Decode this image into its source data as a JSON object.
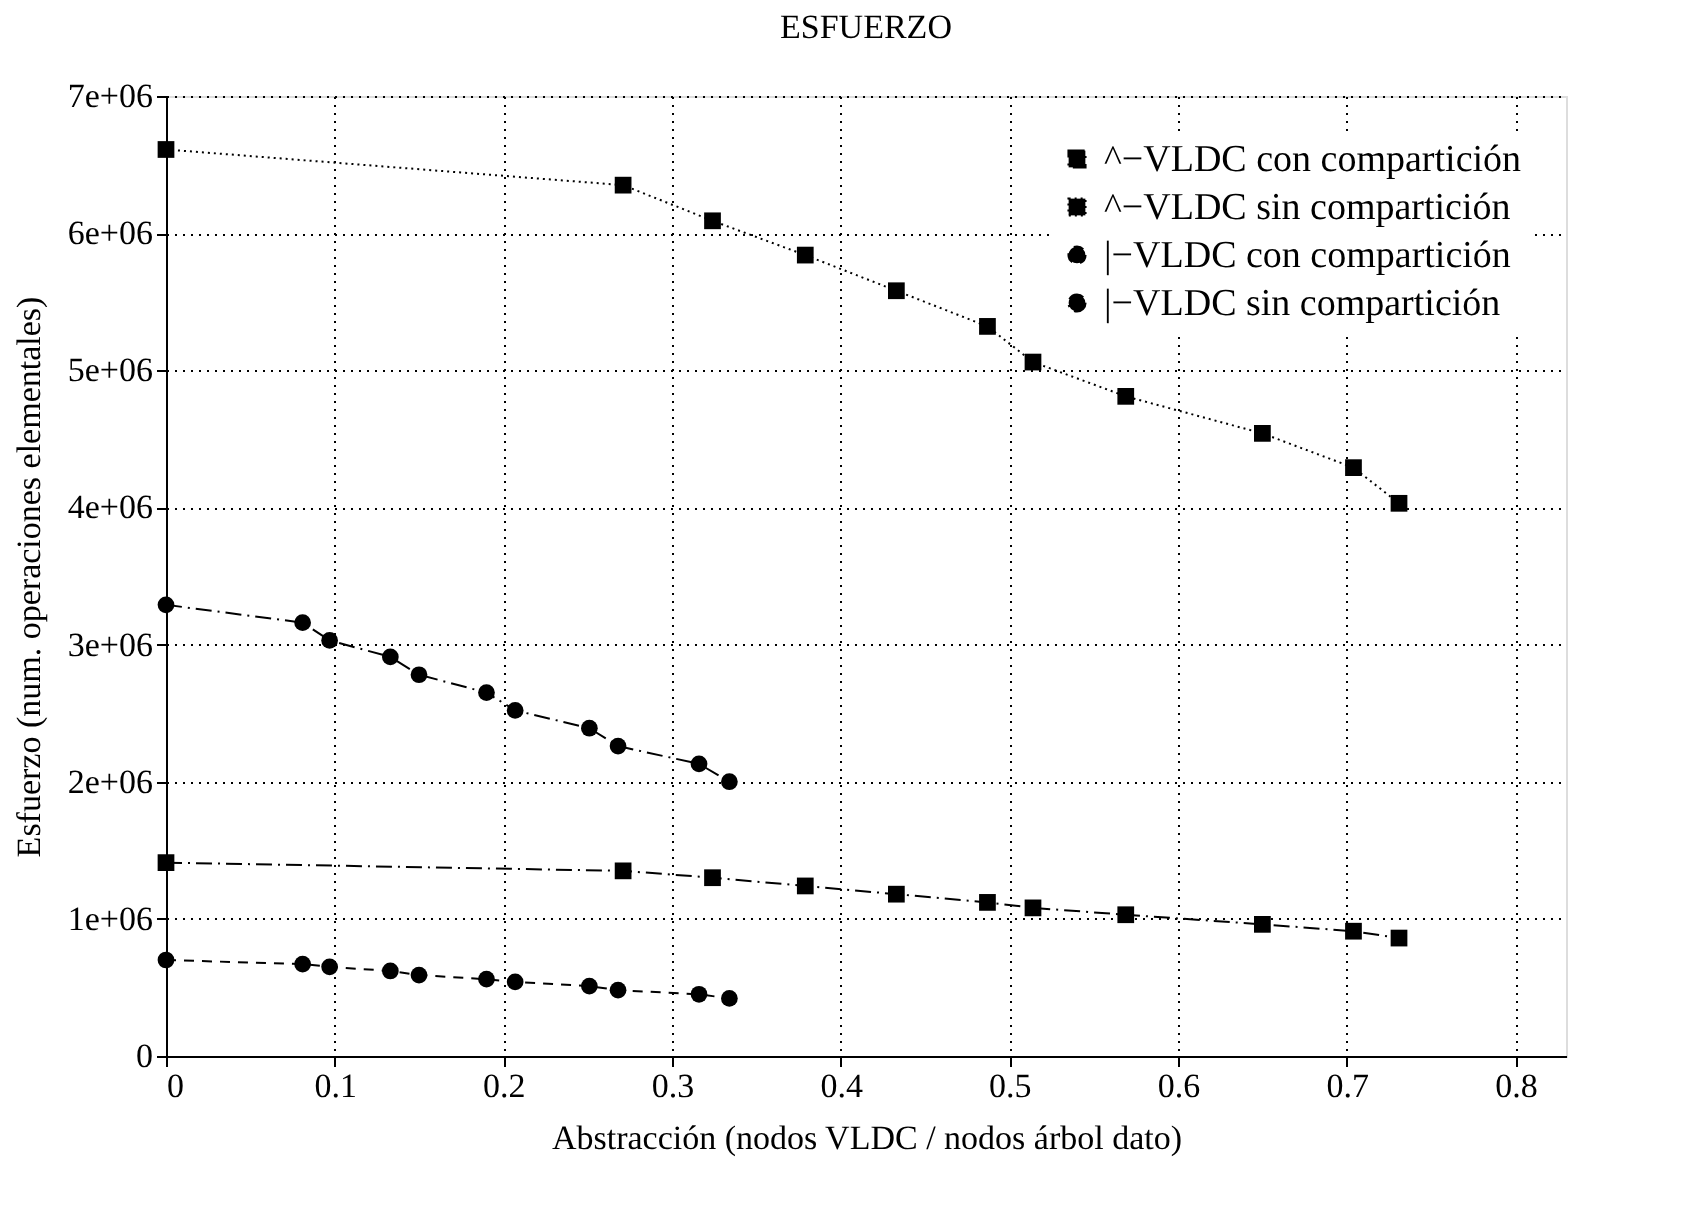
{
  "chart_data": {
    "type": "line",
    "title": "ESFUERZO",
    "xlabel": "Abstracción (nodos VLDC / nodos árbol dato)",
    "ylabel": "Esfuerzo (num. operaciones elementales)",
    "xlim": [
      0,
      0.83
    ],
    "xticks": [
      0,
      0.1,
      0.2,
      0.3,
      0.4,
      0.5,
      0.6,
      0.7,
      0.8
    ],
    "ylim": [
      0,
      7000000
    ],
    "yticks": [
      0,
      {
        "value": 1000000,
        "label": "1e+06"
      },
      {
        "value": 2000000,
        "label": "2e+06"
      },
      {
        "value": 3000000,
        "label": "3e+06"
      },
      {
        "value": 4000000,
        "label": "4e+06"
      },
      {
        "value": 5000000,
        "label": "5e+06"
      },
      {
        "value": 6000000,
        "label": "6e+06"
      },
      {
        "value": 7000000,
        "label": "7e+06"
      }
    ],
    "grid": true,
    "legend": "top right",
    "series": [
      {
        "name": "^−VLDC con compartición",
        "color": "#000000",
        "marker": "square",
        "line_style": "dashdot",
        "x": [
          0,
          0.271,
          0.324,
          0.379,
          0.433,
          0.487,
          0.514,
          0.569,
          0.65,
          0.704,
          0.731
        ],
        "values": [
          1410000,
          1350000,
          1300000,
          1240000,
          1180000,
          1120000,
          1080000,
          1030000,
          960000,
          910000,
          860000
        ]
      },
      {
        "name": "^−VLDC sin compartición",
        "color": "#000000",
        "marker": "square",
        "line_style": "dotted",
        "x": [
          0,
          0.271,
          0.324,
          0.379,
          0.433,
          0.487,
          0.514,
          0.569,
          0.65,
          0.704,
          0.731
        ],
        "values": [
          6610000,
          6350000,
          6090000,
          5840000,
          5580000,
          5320000,
          5060000,
          4810000,
          4540000,
          4290000,
          4030000
        ]
      },
      {
        "name": "|−VLDC con compartición",
        "color": "#000000",
        "marker": "circle",
        "line_style": "dashed",
        "x": [
          0,
          0.081,
          0.097,
          0.133,
          0.15,
          0.19,
          0.207,
          0.251,
          0.268,
          0.316,
          0.334
        ],
        "values": [
          700000,
          670000,
          650000,
          620000,
          590000,
          560000,
          540000,
          510000,
          480000,
          450000,
          420000
        ]
      },
      {
        "name": "|−VLDC sin compartición",
        "color": "#000000",
        "marker": "circle",
        "line_style": "dashdot",
        "x": [
          0,
          0.081,
          0.097,
          0.133,
          0.15,
          0.19,
          0.207,
          0.251,
          0.268,
          0.316,
          0.334
        ],
        "values": [
          3290000,
          3160000,
          3030000,
          2910000,
          2780000,
          2650000,
          2520000,
          2390000,
          2260000,
          2130000,
          2000000
        ]
      }
    ]
  }
}
